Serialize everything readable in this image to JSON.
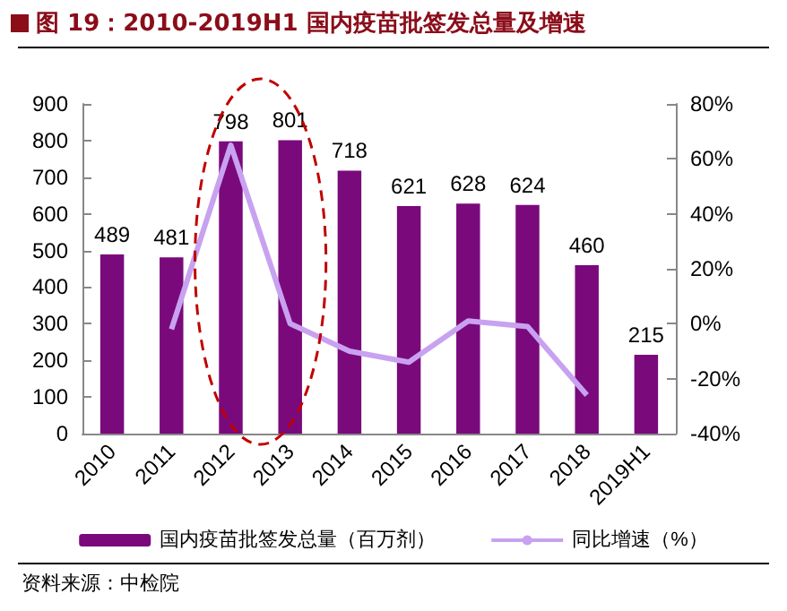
{
  "chart_data": {
    "type": "bar",
    "title": "图 19：2010-2019H1 国内疫苗批签发总量及增速",
    "categories": [
      "2010",
      "2011",
      "2012",
      "2013",
      "2014",
      "2015",
      "2016",
      "2017",
      "2018",
      "2019H1"
    ],
    "series": [
      {
        "name": "国内疫苗批签发总量（百万剂）",
        "color": "#7a0a7c",
        "values": [
          489,
          481,
          798,
          801,
          718,
          621,
          628,
          624,
          460,
          215
        ],
        "value_labels": [
          "489",
          "481",
          "798",
          "801",
          "718",
          "621",
          "628",
          "624",
          "460",
          "215"
        ]
      },
      {
        "name": "同比增速（%）",
        "type": "line",
        "axis": "y2",
        "color": "#c8a2f0",
        "values": [
          null,
          -2,
          65,
          0,
          -10,
          -14,
          1,
          -1,
          -26,
          null
        ]
      }
    ],
    "ylim": [
      0,
      900
    ],
    "yticks": [
      0,
      100,
      200,
      300,
      400,
      500,
      600,
      700,
      800,
      900
    ],
    "y2lim": [
      -40,
      80
    ],
    "y2ticks": [
      {
        "value": -40,
        "label": "-40%"
      },
      {
        "value": -20,
        "label": "-20%"
      },
      {
        "value": 0,
        "label": "0%"
      },
      {
        "value": 20,
        "label": "20%"
      },
      {
        "value": 40,
        "label": "40%"
      },
      {
        "value": 60,
        "label": "60%"
      },
      {
        "value": 80,
        "label": "80%"
      }
    ],
    "grid": false,
    "legend": "bottom",
    "marker": "none",
    "line_style": "solid",
    "annotations": [
      "资料来源：中检院"
    ]
  }
}
